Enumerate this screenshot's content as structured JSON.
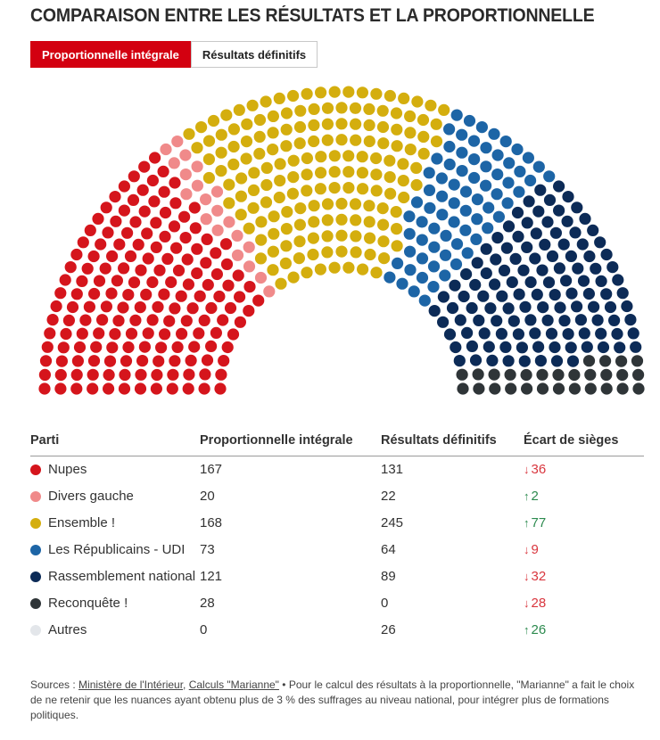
{
  "title": "COMPARAISON ENTRE LES RÉSULTATS ET LA PROPORTIONNELLE",
  "tabs": [
    {
      "label": "Proportionnelle intégrale",
      "active": true
    },
    {
      "label": "Résultats définitifs",
      "active": false
    }
  ],
  "table": {
    "headers": [
      "Parti",
      "Proportionnelle intégrale",
      "Résultats définitifs",
      "Écart de sièges"
    ],
    "rows": [
      {
        "party": "Nupes",
        "color": "#d5151c",
        "prop": "167",
        "result": "131",
        "delta": "36",
        "dir": "down"
      },
      {
        "party": "Divers gauche",
        "color": "#f08a8a",
        "prop": "20",
        "result": "22",
        "delta": "2",
        "dir": "up"
      },
      {
        "party": "Ensemble !",
        "color": "#d4ae0e",
        "prop": "168",
        "result": "245",
        "delta": "77",
        "dir": "up"
      },
      {
        "party": "Les Républicains - UDI",
        "color": "#1d65a6",
        "prop": "73",
        "result": "64",
        "delta": "9",
        "dir": "down"
      },
      {
        "party": "Rassemblement national",
        "color": "#0c2b57",
        "prop": "121",
        "result": "89",
        "delta": "32",
        "dir": "down"
      },
      {
        "party": "Reconquête !",
        "color": "#2f3538",
        "prop": "28",
        "result": "0",
        "delta": "28",
        "dir": "down"
      },
      {
        "party": "Autres",
        "color": "#e3e6ea",
        "prop": "0",
        "result": "26",
        "delta": "26",
        "dir": "up"
      }
    ]
  },
  "sources": {
    "prefix": "Sources : ",
    "link1": "Ministère de l'Intérieur",
    "sep": ", ",
    "link2": "Calculs \"Marianne\"",
    "text": " • Pour le calcul des résultats à la proportionnelle, \"Marianne\" a fait le choix de ne retenir que les nuances ayant obtenu plus de 3 % des suffrages au niveau national, pour intégrer plus de formations politiques."
  },
  "chart_data": {
    "type": "hemicycle",
    "view": "Proportionnelle intégrale",
    "total_seats": 577,
    "series": [
      {
        "name": "Nupes",
        "seats": 167,
        "color": "#d5151c"
      },
      {
        "name": "Divers gauche",
        "seats": 20,
        "color": "#f08a8a"
      },
      {
        "name": "Ensemble !",
        "seats": 168,
        "color": "#d4ae0e"
      },
      {
        "name": "Les Républicains - UDI",
        "seats": 73,
        "color": "#1d65a6"
      },
      {
        "name": "Rassemblement national",
        "seats": 121,
        "color": "#0c2b57"
      },
      {
        "name": "Reconquête !",
        "seats": 28,
        "color": "#2f3538"
      },
      {
        "name": "Autres",
        "seats": 0,
        "color": "#e3e6ea"
      }
    ]
  }
}
